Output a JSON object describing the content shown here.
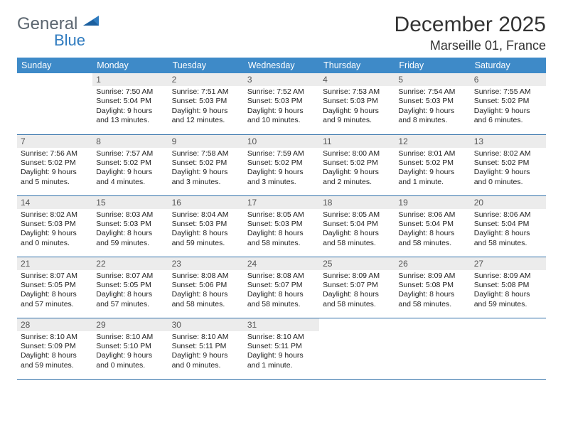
{
  "brand": {
    "part1": "General",
    "part2": "Blue"
  },
  "title": "December 2025",
  "location": "Marseille 01, France",
  "colors": {
    "header_bg": "#3e8ac8",
    "row_border": "#2f6fa8",
    "daynum_bg": "#ececec",
    "logo_gray": "#5c6670",
    "logo_blue": "#2f7bbf"
  },
  "weekdays": [
    "Sunday",
    "Monday",
    "Tuesday",
    "Wednesday",
    "Thursday",
    "Friday",
    "Saturday"
  ],
  "weeks": [
    [
      {
        "n": "",
        "lines": []
      },
      {
        "n": "1",
        "lines": [
          "Sunrise: 7:50 AM",
          "Sunset: 5:04 PM",
          "Daylight: 9 hours",
          "and 13 minutes."
        ]
      },
      {
        "n": "2",
        "lines": [
          "Sunrise: 7:51 AM",
          "Sunset: 5:03 PM",
          "Daylight: 9 hours",
          "and 12 minutes."
        ]
      },
      {
        "n": "3",
        "lines": [
          "Sunrise: 7:52 AM",
          "Sunset: 5:03 PM",
          "Daylight: 9 hours",
          "and 10 minutes."
        ]
      },
      {
        "n": "4",
        "lines": [
          "Sunrise: 7:53 AM",
          "Sunset: 5:03 PM",
          "Daylight: 9 hours",
          "and 9 minutes."
        ]
      },
      {
        "n": "5",
        "lines": [
          "Sunrise: 7:54 AM",
          "Sunset: 5:03 PM",
          "Daylight: 9 hours",
          "and 8 minutes."
        ]
      },
      {
        "n": "6",
        "lines": [
          "Sunrise: 7:55 AM",
          "Sunset: 5:02 PM",
          "Daylight: 9 hours",
          "and 6 minutes."
        ]
      }
    ],
    [
      {
        "n": "7",
        "lines": [
          "Sunrise: 7:56 AM",
          "Sunset: 5:02 PM",
          "Daylight: 9 hours",
          "and 5 minutes."
        ]
      },
      {
        "n": "8",
        "lines": [
          "Sunrise: 7:57 AM",
          "Sunset: 5:02 PM",
          "Daylight: 9 hours",
          "and 4 minutes."
        ]
      },
      {
        "n": "9",
        "lines": [
          "Sunrise: 7:58 AM",
          "Sunset: 5:02 PM",
          "Daylight: 9 hours",
          "and 3 minutes."
        ]
      },
      {
        "n": "10",
        "lines": [
          "Sunrise: 7:59 AM",
          "Sunset: 5:02 PM",
          "Daylight: 9 hours",
          "and 3 minutes."
        ]
      },
      {
        "n": "11",
        "lines": [
          "Sunrise: 8:00 AM",
          "Sunset: 5:02 PM",
          "Daylight: 9 hours",
          "and 2 minutes."
        ]
      },
      {
        "n": "12",
        "lines": [
          "Sunrise: 8:01 AM",
          "Sunset: 5:02 PM",
          "Daylight: 9 hours",
          "and 1 minute."
        ]
      },
      {
        "n": "13",
        "lines": [
          "Sunrise: 8:02 AM",
          "Sunset: 5:02 PM",
          "Daylight: 9 hours",
          "and 0 minutes."
        ]
      }
    ],
    [
      {
        "n": "14",
        "lines": [
          "Sunrise: 8:02 AM",
          "Sunset: 5:03 PM",
          "Daylight: 9 hours",
          "and 0 minutes."
        ]
      },
      {
        "n": "15",
        "lines": [
          "Sunrise: 8:03 AM",
          "Sunset: 5:03 PM",
          "Daylight: 8 hours",
          "and 59 minutes."
        ]
      },
      {
        "n": "16",
        "lines": [
          "Sunrise: 8:04 AM",
          "Sunset: 5:03 PM",
          "Daylight: 8 hours",
          "and 59 minutes."
        ]
      },
      {
        "n": "17",
        "lines": [
          "Sunrise: 8:05 AM",
          "Sunset: 5:03 PM",
          "Daylight: 8 hours",
          "and 58 minutes."
        ]
      },
      {
        "n": "18",
        "lines": [
          "Sunrise: 8:05 AM",
          "Sunset: 5:04 PM",
          "Daylight: 8 hours",
          "and 58 minutes."
        ]
      },
      {
        "n": "19",
        "lines": [
          "Sunrise: 8:06 AM",
          "Sunset: 5:04 PM",
          "Daylight: 8 hours",
          "and 58 minutes."
        ]
      },
      {
        "n": "20",
        "lines": [
          "Sunrise: 8:06 AM",
          "Sunset: 5:04 PM",
          "Daylight: 8 hours",
          "and 58 minutes."
        ]
      }
    ],
    [
      {
        "n": "21",
        "lines": [
          "Sunrise: 8:07 AM",
          "Sunset: 5:05 PM",
          "Daylight: 8 hours",
          "and 57 minutes."
        ]
      },
      {
        "n": "22",
        "lines": [
          "Sunrise: 8:07 AM",
          "Sunset: 5:05 PM",
          "Daylight: 8 hours",
          "and 57 minutes."
        ]
      },
      {
        "n": "23",
        "lines": [
          "Sunrise: 8:08 AM",
          "Sunset: 5:06 PM",
          "Daylight: 8 hours",
          "and 58 minutes."
        ]
      },
      {
        "n": "24",
        "lines": [
          "Sunrise: 8:08 AM",
          "Sunset: 5:07 PM",
          "Daylight: 8 hours",
          "and 58 minutes."
        ]
      },
      {
        "n": "25",
        "lines": [
          "Sunrise: 8:09 AM",
          "Sunset: 5:07 PM",
          "Daylight: 8 hours",
          "and 58 minutes."
        ]
      },
      {
        "n": "26",
        "lines": [
          "Sunrise: 8:09 AM",
          "Sunset: 5:08 PM",
          "Daylight: 8 hours",
          "and 58 minutes."
        ]
      },
      {
        "n": "27",
        "lines": [
          "Sunrise: 8:09 AM",
          "Sunset: 5:08 PM",
          "Daylight: 8 hours",
          "and 59 minutes."
        ]
      }
    ],
    [
      {
        "n": "28",
        "lines": [
          "Sunrise: 8:10 AM",
          "Sunset: 5:09 PM",
          "Daylight: 8 hours",
          "and 59 minutes."
        ]
      },
      {
        "n": "29",
        "lines": [
          "Sunrise: 8:10 AM",
          "Sunset: 5:10 PM",
          "Daylight: 9 hours",
          "and 0 minutes."
        ]
      },
      {
        "n": "30",
        "lines": [
          "Sunrise: 8:10 AM",
          "Sunset: 5:11 PM",
          "Daylight: 9 hours",
          "and 0 minutes."
        ]
      },
      {
        "n": "31",
        "lines": [
          "Sunrise: 8:10 AM",
          "Sunset: 5:11 PM",
          "Daylight: 9 hours",
          "and 1 minute."
        ]
      },
      {
        "n": "",
        "lines": []
      },
      {
        "n": "",
        "lines": []
      },
      {
        "n": "",
        "lines": []
      }
    ]
  ]
}
